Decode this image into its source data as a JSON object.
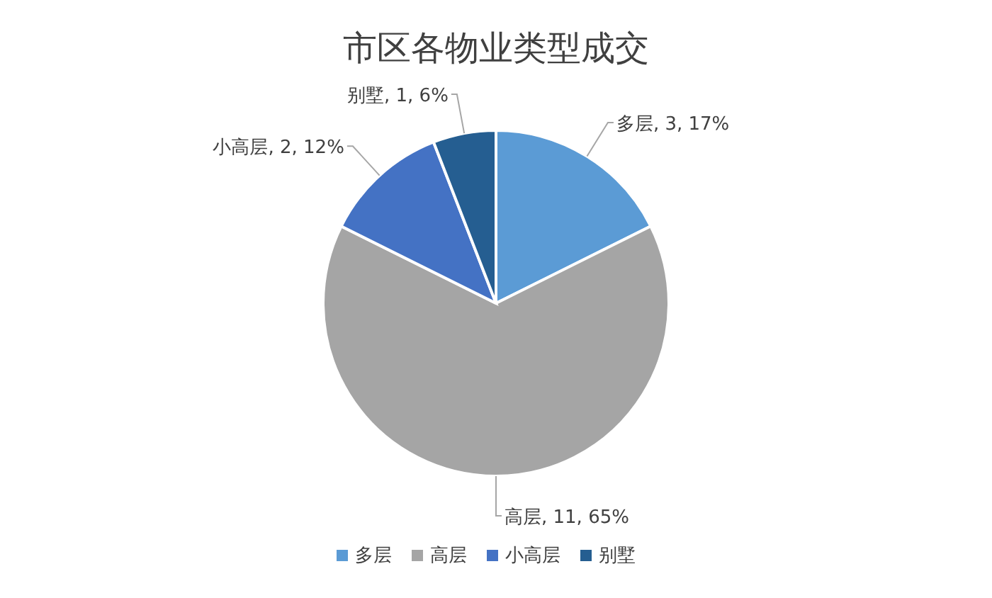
{
  "chart_data": {
    "type": "pie",
    "title": "市区各物业类型成交",
    "categories": [
      "多层",
      "高层",
      "小高层",
      "别墅"
    ],
    "values": [
      3,
      11,
      2,
      1
    ],
    "colors": [
      "#5b9bd5",
      "#a5a5a5",
      "#4472c4",
      "#255e91"
    ],
    "value_labels": [
      "多层, 3, 17%",
      "高层, 11, 65%",
      "小高层, 2, 12%",
      "别墅, 1, 6%"
    ],
    "legend": "bottom"
  }
}
